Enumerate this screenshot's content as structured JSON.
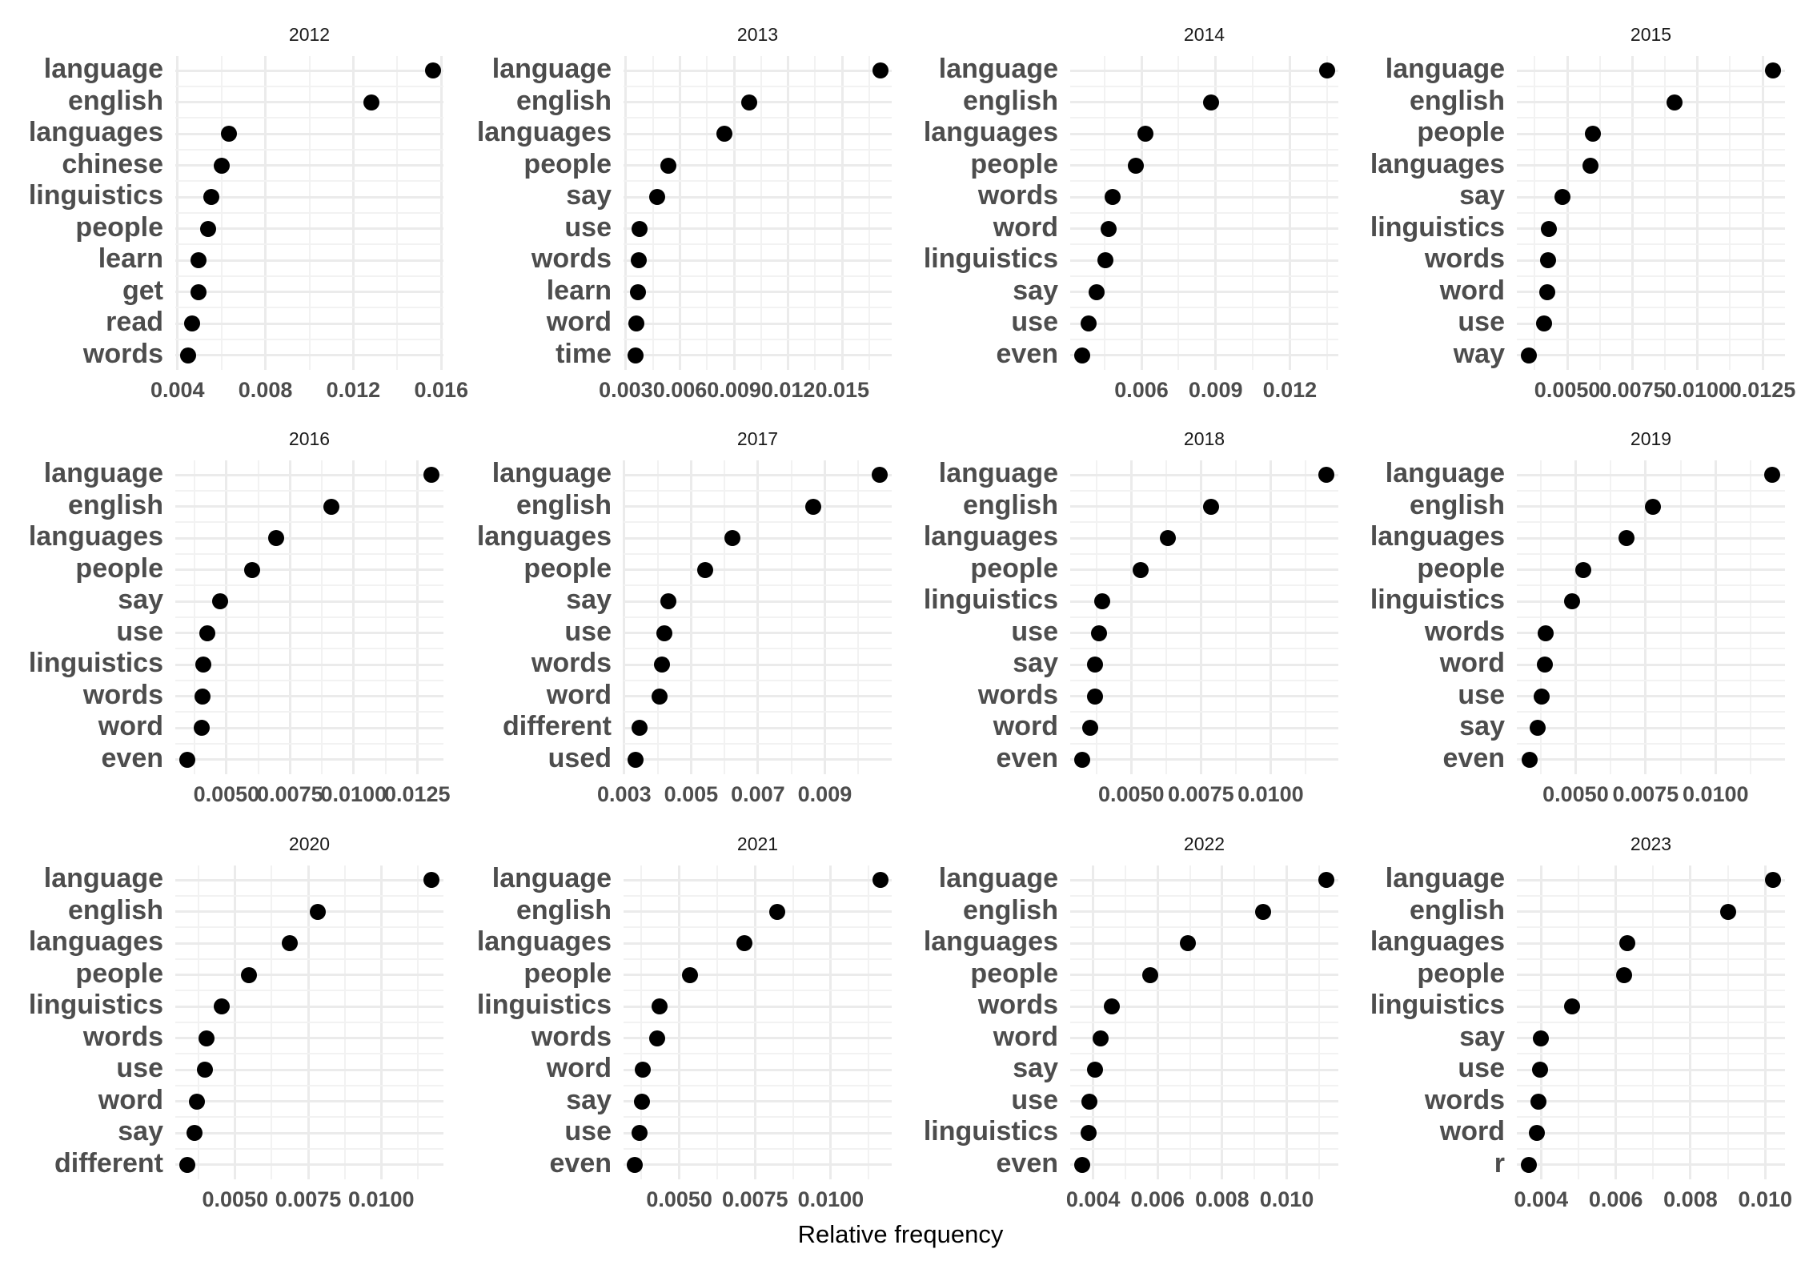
{
  "figure": {
    "x_axis_title": "Relative frequency",
    "dot_color": "#000000",
    "grid_color": "#ebebeb",
    "label_color": "#4d4d4d"
  },
  "chart_data": {
    "type": "scatter",
    "subtype": "faceted dot plot (Cleveland)",
    "xlabel": "Relative frequency",
    "ylabel": "",
    "facet_layout": {
      "rows": 3,
      "cols": 4
    },
    "grid": true,
    "legend": "none",
    "panels": [
      {
        "title": "2012",
        "xlim": [
          0.0039,
          0.0161
        ],
        "ticks": [
          "0.004",
          "0.008",
          "0.012",
          "0.016"
        ],
        "tick_values": [
          0.004,
          0.008,
          0.012,
          0.016
        ],
        "words": [
          "language",
          "english",
          "languages",
          "chinese",
          "linguistics",
          "people",
          "learn",
          "get",
          "read",
          "words"
        ],
        "values": [
          0.01564,
          0.01283,
          0.00634,
          0.00602,
          0.00555,
          0.00541,
          0.00494,
          0.00494,
          0.00465,
          0.00447
        ]
      },
      {
        "title": "2013",
        "xlim": [
          0.00287,
          0.01774
        ],
        "ticks": [
          "0.003",
          "0.006",
          "0.009",
          "0.012",
          "0.015"
        ],
        "tick_values": [
          0.003,
          0.006,
          0.009,
          0.012,
          0.015
        ],
        "words": [
          "language",
          "english",
          "languages",
          "people",
          "say",
          "use",
          "words",
          "learn",
          "word",
          "time"
        ],
        "values": [
          0.01712,
          0.00984,
          0.00848,
          0.00537,
          0.00475,
          0.00375,
          0.0037,
          0.00368,
          0.00357,
          0.00353
        ]
      },
      {
        "title": "2014",
        "xlim": [
          0.00312,
          0.01396
        ],
        "ticks": [
          "0.006",
          "0.009",
          "0.012"
        ],
        "tick_values": [
          0.006,
          0.009,
          0.012
        ],
        "words": [
          "language",
          "english",
          "languages",
          "people",
          "words",
          "word",
          "linguistics",
          "say",
          "use",
          "even"
        ],
        "values": [
          0.0135,
          0.00881,
          0.00616,
          0.00578,
          0.00484,
          0.00468,
          0.00453,
          0.00419,
          0.00388,
          0.00359
        ]
      },
      {
        "title": "2015",
        "xlim": [
          0.00306,
          0.01336
        ],
        "ticks": [
          "0.0050",
          "0.0075",
          "0.0100",
          "0.0125"
        ],
        "tick_values": [
          0.005,
          0.0075,
          0.01,
          0.0125
        ],
        "words": [
          "language",
          "english",
          "people",
          "languages",
          "say",
          "linguistics",
          "words",
          "word",
          "use",
          "way"
        ],
        "values": [
          0.0129,
          0.00912,
          0.00597,
          0.00588,
          0.00482,
          0.0043,
          0.00427,
          0.00424,
          0.00412,
          0.00352
        ]
      },
      {
        "title": "2016",
        "xlim": [
          0.00299,
          0.01353
        ],
        "ticks": [
          "0.0050",
          "0.0075",
          "0.0100",
          "0.0125"
        ],
        "tick_values": [
          0.005,
          0.0075,
          0.01,
          0.0125
        ],
        "words": [
          "language",
          "english",
          "languages",
          "people",
          "say",
          "use",
          "linguistics",
          "words",
          "word",
          "even"
        ],
        "values": [
          0.01305,
          0.00914,
          0.00697,
          0.006,
          0.00476,
          0.00426,
          0.0041,
          0.00407,
          0.00403,
          0.00345
        ]
      },
      {
        "title": "2017",
        "xlim": [
          0.00298,
          0.011
        ],
        "ticks": [
          "0.003",
          "0.005",
          "0.007",
          "0.009"
        ],
        "tick_values": [
          0.003,
          0.005,
          0.007,
          0.009
        ],
        "words": [
          "language",
          "english",
          "languages",
          "people",
          "say",
          "use",
          "words",
          "word",
          "different",
          "used"
        ],
        "values": [
          0.01064,
          0.00866,
          0.00623,
          0.00541,
          0.00433,
          0.00421,
          0.00413,
          0.00406,
          0.00347,
          0.00335
        ]
      },
      {
        "title": "2018",
        "xlim": [
          0.00281,
          0.01243
        ],
        "ticks": [
          "0.0050",
          "0.0075",
          "0.0100"
        ],
        "tick_values": [
          0.005,
          0.0075,
          0.01
        ],
        "words": [
          "language",
          "english",
          "languages",
          "people",
          "linguistics",
          "use",
          "say",
          "words",
          "word",
          "even"
        ],
        "values": [
          0.01201,
          0.00786,
          0.00632,
          0.00535,
          0.00396,
          0.00384,
          0.00371,
          0.00371,
          0.00352,
          0.00324
        ]
      },
      {
        "title": "2019",
        "xlim": [
          0.0029,
          0.01248
        ],
        "ticks": [
          "0.0050",
          "0.0075",
          "0.0100"
        ],
        "tick_values": [
          0.005,
          0.0075,
          0.01
        ],
        "words": [
          "language",
          "english",
          "languages",
          "people",
          "linguistics",
          "words",
          "word",
          "use",
          "say",
          "even"
        ],
        "values": [
          0.01202,
          0.00777,
          0.00681,
          0.00528,
          0.00488,
          0.00392,
          0.00389,
          0.0038,
          0.00365,
          0.00335
        ]
      },
      {
        "title": "2020",
        "xlim": [
          0.00295,
          0.01213
        ],
        "ticks": [
          "0.0050",
          "0.0075",
          "0.0100"
        ],
        "tick_values": [
          0.005,
          0.0075,
          0.01
        ],
        "words": [
          "language",
          "english",
          "languages",
          "people",
          "linguistics",
          "words",
          "use",
          "word",
          "say",
          "different"
        ],
        "values": [
          0.01172,
          0.00782,
          0.00686,
          0.00548,
          0.00455,
          0.00401,
          0.00396,
          0.0037,
          0.00362,
          0.00335
        ]
      },
      {
        "title": "2021",
        "xlim": [
          0.00316,
          0.01201
        ],
        "ticks": [
          "0.0050",
          "0.0075",
          "0.0100"
        ],
        "tick_values": [
          0.005,
          0.0075,
          0.01
        ],
        "words": [
          "language",
          "english",
          "languages",
          "people",
          "linguistics",
          "words",
          "word",
          "say",
          "use",
          "even"
        ],
        "values": [
          0.01163,
          0.00823,
          0.00716,
          0.00535,
          0.00436,
          0.00427,
          0.0038,
          0.00377,
          0.0037,
          0.00353
        ]
      },
      {
        "title": "2022",
        "xlim": [
          0.00329,
          0.0116
        ],
        "ticks": [
          "0.004",
          "0.006",
          "0.008",
          "0.010"
        ],
        "tick_values": [
          0.004,
          0.006,
          0.008,
          0.01
        ],
        "words": [
          "language",
          "english",
          "languages",
          "people",
          "words",
          "word",
          "say",
          "use",
          "linguistics",
          "even"
        ],
        "values": [
          0.01123,
          0.00926,
          0.00693,
          0.00576,
          0.00457,
          0.00424,
          0.00405,
          0.00389,
          0.00387,
          0.00366
        ]
      },
      {
        "title": "2023",
        "xlim": [
          0.00335,
          0.01053
        ],
        "ticks": [
          "0.004",
          "0.006",
          "0.008",
          "0.010"
        ],
        "tick_values": [
          0.004,
          0.006,
          0.008,
          0.01
        ],
        "words": [
          "language",
          "english",
          "languages",
          "people",
          "linguistics",
          "say",
          "use",
          "words",
          "word",
          "r"
        ],
        "values": [
          0.01021,
          0.00901,
          0.0063,
          0.00623,
          0.00482,
          0.004,
          0.00398,
          0.00392,
          0.00388,
          0.00367
        ]
      }
    ]
  }
}
